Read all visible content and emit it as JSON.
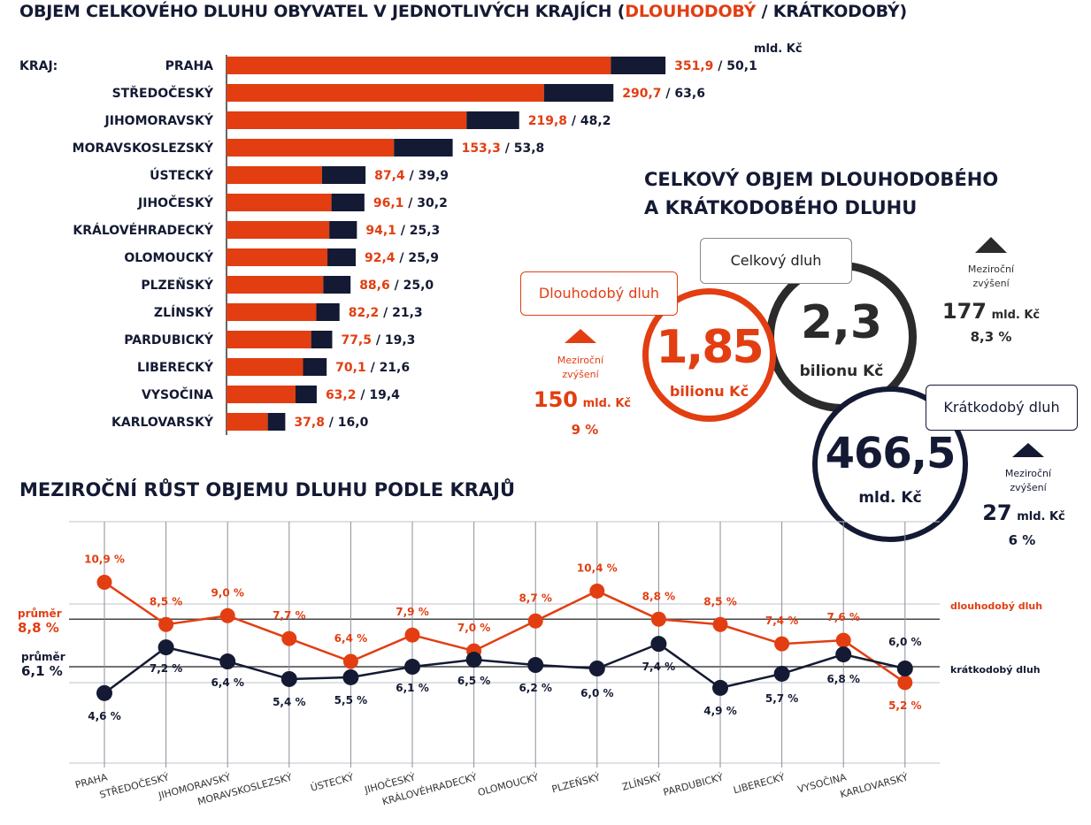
{
  "title": {
    "main": "OBJEM CELKOVÉHO DLUHU OBYVATEL V JEDNOTLIVÝCH KRAJÍCH (",
    "long": "DLOUHODOBÝ",
    "sep": " / ",
    "short": "KRÁTKODOBÝ)"
  },
  "bar_unit": "mld. Kč",
  "kraj_header": "KRAJ:",
  "colors": {
    "long": "#e23e12",
    "short": "#141a33",
    "grid": "#8a8f99"
  },
  "summary": {
    "title_line1": "CELKOVÝ OBJEM DLOUHODOBÉHO",
    "title_line2": "A KRÁTKODOBÉHO DLUHU",
    "total": {
      "label": "Celkový dluh",
      "value": "2,3",
      "unit": "bilionu Kč",
      "increase_label": "Meziroční zvýšení",
      "increase_value": "177",
      "increase_unit": "mld. Kč",
      "increase_pct": "8,3 %"
    },
    "long": {
      "label": "Dlouhodobý dluh",
      "value": "1,85",
      "unit": "bilionu Kč",
      "increase_label": "Meziroční zvýšení",
      "increase_value": "150",
      "increase_unit": "mld. Kč",
      "increase_pct": "9 %"
    },
    "short": {
      "label": "Krátkodobý dluh",
      "value": "466,5",
      "unit": "mld. Kč",
      "increase_label": "Meziroční zvýšení",
      "increase_value": "27",
      "increase_unit": "mld. Kč",
      "increase_pct": "6 %"
    }
  },
  "line_title": "MEZIROČNÍ RŮST OBJEMU DLUHU PODLE KRAJŮ",
  "avg_long": {
    "label": "průměr",
    "value": "8,8 %"
  },
  "avg_short": {
    "label": "průměr",
    "value": "6,1 %"
  },
  "series_label_long": "dlouhodobý dluh",
  "series_label_short": "krátkodobý dluh",
  "chart_data": [
    {
      "type": "bar",
      "stacked": true,
      "orientation": "horizontal",
      "title": "OBJEM CELKOVÉHO DLUHU OBYVATEL V JEDNOTLIVÝCH KRAJÍCH (DLOUHODOBÝ / KRÁTKODOBÝ)",
      "unit": "mld. Kč",
      "categories": [
        "PRAHA",
        "STŘEDOČESKÝ",
        "JIHOMORAVSKÝ",
        "MORAVSKOSLEZSKÝ",
        "ÚSTECKÝ",
        "JIHOČESKÝ",
        "KRÁLOVÉHRADECKÝ",
        "OLOMOUCKÝ",
        "PLZEŇSKÝ",
        "ZLÍNSKÝ",
        "PARDUBICKÝ",
        "LIBERECKÝ",
        "VYSOČINA",
        "KARLOVARSKÝ"
      ],
      "series": [
        {
          "name": "DLOUHODOBÝ",
          "color": "#e23e12",
          "values": [
            351.9,
            290.7,
            219.8,
            153.3,
            87.4,
            96.1,
            94.1,
            92.4,
            88.6,
            82.2,
            77.5,
            70.1,
            63.2,
            37.8
          ],
          "labels": [
            "351,9",
            "290,7",
            "219,8",
            "153,3",
            "87,4",
            "96,1",
            "94,1",
            "92,4",
            "88,6",
            "82,2",
            "77,5",
            "70,1",
            "63,2",
            "37,8"
          ]
        },
        {
          "name": "KRÁTKODOBÝ",
          "color": "#141a33",
          "values": [
            50.1,
            63.6,
            48.2,
            53.8,
            39.9,
            30.2,
            25.3,
            25.9,
            25.0,
            21.3,
            19.3,
            21.6,
            19.4,
            16.0
          ],
          "labels": [
            "50,1",
            "63,6",
            "48,2",
            "53,8",
            "39,9",
            "30,2",
            "25,3",
            "25,9",
            "25,0",
            "21,3",
            "19,3",
            "21,6",
            "19,4",
            "16,0"
          ]
        }
      ],
      "xlim": [
        0,
        420
      ]
    },
    {
      "type": "line",
      "title": "MEZIROČNÍ RŮST OBJEMU DLUHU PODLE KRAJŮ",
      "unit": "%",
      "categories": [
        "PRAHA",
        "STŘEDOČESKÝ",
        "JIHOMORAVSKÝ",
        "MORAVSKOSLEZSKÝ",
        "ÚSTECKÝ",
        "JIHOČESKÝ",
        "KRÁLOVÉHRADECKÝ",
        "OLOMOUCKÝ",
        "PLZEŇSKÝ",
        "ZLÍNSKÝ",
        "PARDUBICKÝ",
        "LIBERECKÝ",
        "VYSOČINA",
        "KARLOVARSKÝ"
      ],
      "series": [
        {
          "name": "dlouhodobý dluh",
          "color": "#e23e12",
          "values": [
            10.9,
            8.5,
            9.0,
            7.7,
            6.4,
            7.9,
            7.0,
            8.7,
            10.4,
            8.8,
            8.5,
            7.4,
            7.6,
            5.2
          ],
          "labels": [
            "10,9 %",
            "8,5 %",
            "9,0 %",
            "7,7 %",
            "6,4 %",
            "7,9 %",
            "7,0 %",
            "8,7 %",
            "10,4 %",
            "8,8 %",
            "8,5 %",
            "7,4 %",
            "7,6 %",
            "5,2 %"
          ]
        },
        {
          "name": "krátkodobý dluh",
          "color": "#141a33",
          "values": [
            4.6,
            7.2,
            6.4,
            5.4,
            5.5,
            6.1,
            6.5,
            6.2,
            6.0,
            7.4,
            4.9,
            5.7,
            6.8,
            6.0
          ],
          "labels": [
            "4,6 %",
            "7,2 %",
            "6,4 %",
            "5,4 %",
            "5,5 %",
            "6,1 %",
            "6,5 %",
            "6,2 %",
            "6,0 %",
            "7,4 %",
            "4,9 %",
            "5,7 %",
            "6,8 %",
            "6,0 %"
          ]
        }
      ],
      "averages": {
        "dlouhodobý dluh": 8.8,
        "krátkodobý dluh": 6.1
      },
      "grid": true
    }
  ]
}
